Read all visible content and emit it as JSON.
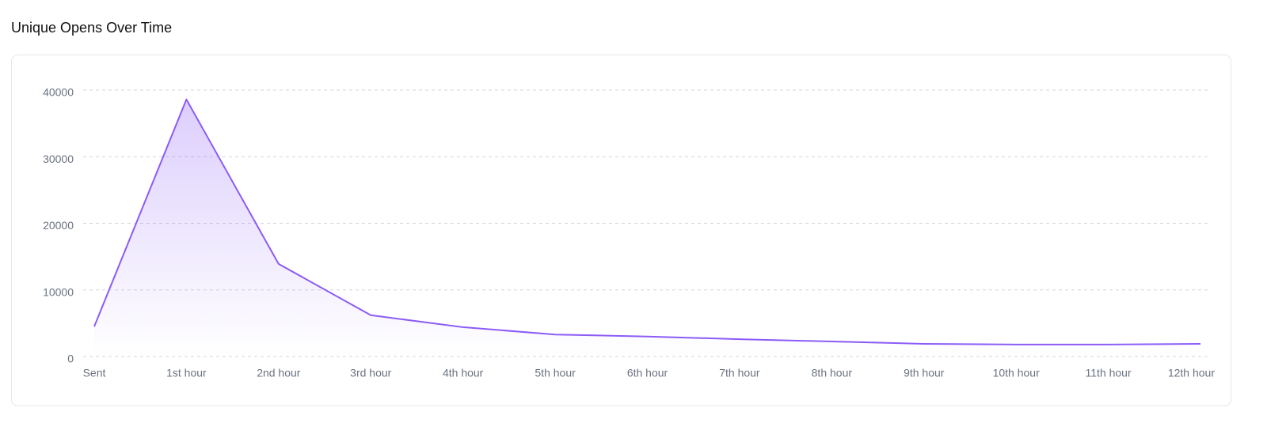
{
  "chart_data": {
    "type": "area",
    "title": "Unique Opens Over Time",
    "categories": [
      "Sent",
      "1st hour",
      "2nd hour",
      "3rd hour",
      "4th hour",
      "5th hour",
      "6th hour",
      "7th hour",
      "8th hour",
      "9th hour",
      "10th hour",
      "11th hour",
      "12th hour"
    ],
    "values": [
      4500,
      38600,
      13900,
      6200,
      4400,
      3300,
      3000,
      2600,
      2250,
      1900,
      1800,
      1800,
      1900
    ],
    "color": "#8b5cf6",
    "ylim": [
      0,
      40000
    ],
    "yticks": [
      0,
      10000,
      20000,
      30000,
      40000
    ],
    "grid": true
  }
}
